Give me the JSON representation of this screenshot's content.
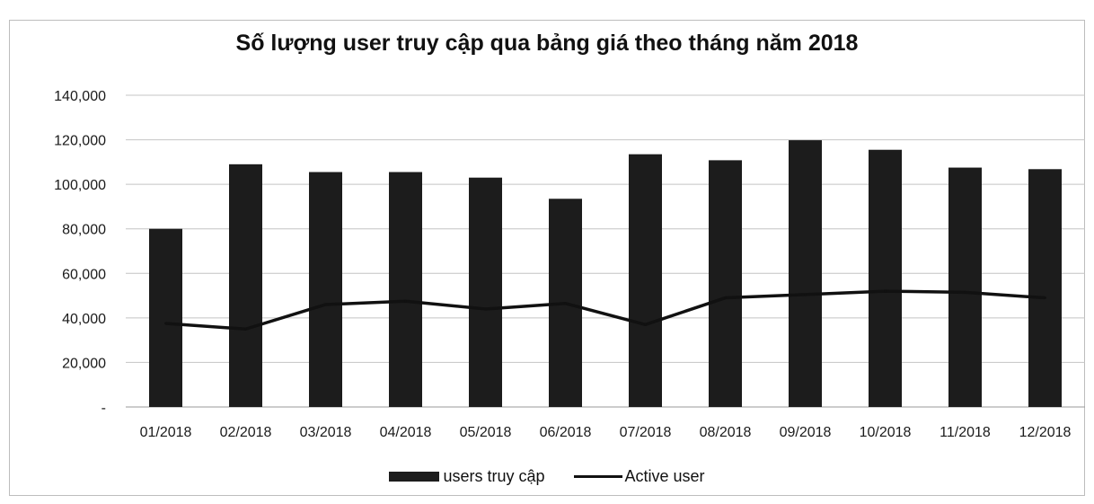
{
  "chart_data": {
    "type": "bar",
    "title": "Số lượng user truy cập qua bảng giá theo tháng năm 2018",
    "categories": [
      "01/2018",
      "02/2018",
      "03/2018",
      "04/2018",
      "05/2018",
      "06/2018",
      "07/2018",
      "08/2018",
      "09/2018",
      "10/2018",
      "11/2018",
      "12/2018"
    ],
    "series": [
      {
        "name": "users truy cập",
        "type": "bar",
        "color": "#1c1c1c",
        "values": [
          80000,
          109000,
          105500,
          105500,
          103000,
          93500,
          113500,
          110800,
          119800,
          115500,
          107500,
          106800
        ]
      },
      {
        "name": "Active user",
        "type": "line",
        "color": "#111111",
        "values": [
          37500,
          35000,
          46000,
          47500,
          44000,
          46500,
          37000,
          49000,
          50500,
          52000,
          51500,
          49000
        ]
      }
    ],
    "yticks": [
      "-",
      "20,000",
      "40,000",
      "60,000",
      "80,000",
      "100,000",
      "120,000",
      "140,000"
    ],
    "ylim": [
      0,
      140000
    ],
    "grid": true,
    "legend_position": "bottom"
  }
}
